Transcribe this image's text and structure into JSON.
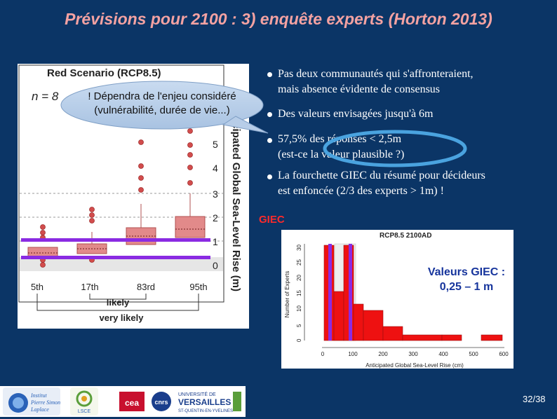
{
  "title": "Prévisions pour 2100 : 3) enquête experts (Horton 2013)",
  "left_chart": {
    "title": "Red Scenario (RCP8.5)",
    "n_label": "n = 8",
    "ylabel": "Anticipated Global Sea-Level Rise (m)",
    "y_ticks": [
      "0",
      "1",
      "2",
      "3",
      "4",
      "5"
    ],
    "categories": [
      "5th",
      "17th",
      "83rd",
      "95th"
    ],
    "group_likely": "likely",
    "group_very_likely": "very likely",
    "colors": {
      "box": "#e28a8a",
      "outlier": "#d24c4c",
      "bar": "#8a2be2"
    }
  },
  "callout": {
    "line1": "! Dépendra de l'enjeu considéré",
    "line2": "(vulnérabilité, durée de vie...)"
  },
  "bullets": [
    {
      "line1": "Pas deux communautés qui s'affronteraient,",
      "line2": "mais absence évidente de consensus"
    },
    {
      "line1": "Des valeurs envisagées jusqu'à 6m",
      "line2": ""
    },
    {
      "line1": "57,5% des réponses < 2,5m",
      "line2": "(est-ce la valeur plausible ?)"
    },
    {
      "line1": "La fourchette GIEC du résumé pour décideurs",
      "line2": "est enfoncée (2/3 des experts > 1m) !"
    }
  ],
  "giec_label": "GIEC",
  "right_chart": {
    "title": "RCP8.5 2100AD",
    "xlabel": "Anticipated Global Sea-Level Rise (cm)",
    "ylabel": "Number of Experts",
    "x_ticks": [
      "0",
      "100",
      "200",
      "300",
      "400",
      "500",
      "600"
    ],
    "y_ticks": [
      "0",
      "5",
      "10",
      "15",
      "20",
      "25",
      "30"
    ],
    "colors": {
      "bar": "#ee1111",
      "marker": "#8a2be2"
    }
  },
  "giec_value": {
    "line1": "Valeurs GIEC :",
    "line2": "0,25 – 1 m"
  },
  "page_number": "32/38",
  "logos": [
    {
      "name": "Institut Pierre Simon Laplace"
    },
    {
      "name": "LSCE"
    },
    {
      "name": "cea"
    },
    {
      "name": "cnrs"
    },
    {
      "name": "Université de Versailles St-Quentin-en-Yvelines"
    }
  ]
}
